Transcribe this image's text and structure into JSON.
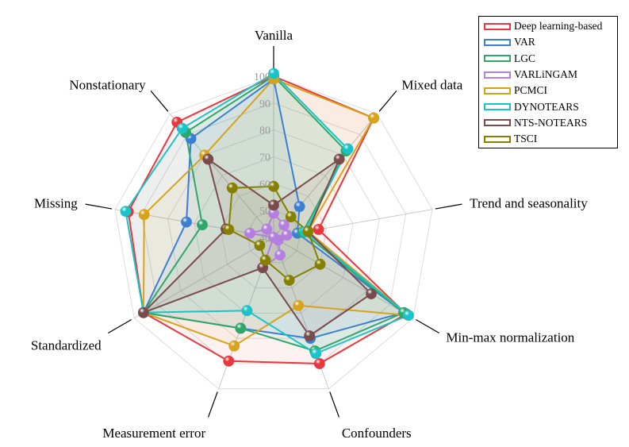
{
  "chart_data": {
    "type": "radar",
    "title": "",
    "axes": [
      "Vanilla",
      "Mixed data",
      "Trend and seasonality",
      "Min-max normalization",
      "Confounders",
      "Measurement error",
      "Standardized",
      "Missing",
      "Nonstationary"
    ],
    "r_range": [
      40,
      100
    ],
    "r_ticks": [
      40,
      50,
      60,
      70,
      80,
      90,
      100
    ],
    "grid": true,
    "legend_position": "top-right",
    "series": [
      {
        "name": "Deep learning-based",
        "color": "#e8383d",
        "values": [
          100,
          98,
          57,
          97,
          90,
          89,
          96,
          95,
          96
        ]
      },
      {
        "name": "VAR",
        "color": "#3b7fd4",
        "values": [
          99,
          55,
          49,
          96,
          80,
          76,
          96,
          73,
          88
        ]
      },
      {
        "name": "LGC",
        "color": "#2ea86a",
        "values": [
          100,
          82,
          51,
          96,
          85,
          76,
          96,
          67,
          91
        ]
      },
      {
        "name": "VARLiNGAM",
        "color": "#b47fe0",
        "values": [
          49,
          46,
          45,
          42,
          47,
          52,
          40,
          49,
          44
        ]
      },
      {
        "name": "PCMCI",
        "color": "#d7a31a",
        "values": [
          99,
          98,
          53,
          98,
          67,
          83,
          96,
          89,
          80
        ]
      },
      {
        "name": "DYNOTEARS",
        "color": "#19c4c9",
        "values": [
          101,
          83,
          52,
          98,
          86,
          69,
          96,
          96,
          93
        ]
      },
      {
        "name": "NTS-NOTEARS",
        "color": "#7a4b4b",
        "values": [
          52,
          78,
          53,
          82,
          79,
          52,
          96,
          58,
          78
        ]
      },
      {
        "name": "TSCI",
        "color": "#858000",
        "values": [
          59,
          50,
          53,
          60,
          57,
          49,
          46,
          57,
          64
        ]
      }
    ]
  }
}
